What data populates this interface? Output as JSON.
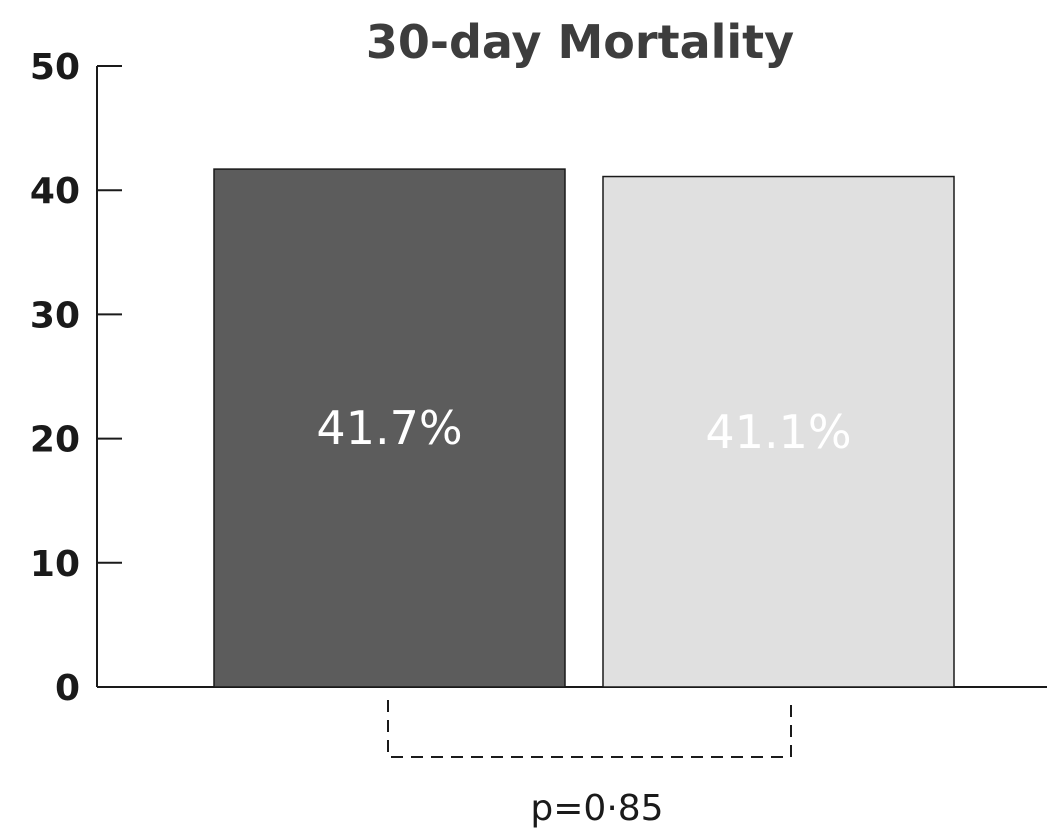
{
  "chart_data": {
    "type": "bar",
    "title": "30-day Mortality",
    "xlabel": "",
    "ylabel": "",
    "ylim": [
      0,
      50
    ],
    "yticks": [
      0,
      10,
      20,
      30,
      40,
      50
    ],
    "categories": [
      "",
      ""
    ],
    "values": [
      41.7,
      41.1
    ],
    "data_labels": [
      "41.7%",
      "41.1%"
    ],
    "bar_colors": [
      "#5c5c5c",
      "#e0e0e0"
    ],
    "grid": false,
    "annotation": {
      "text": "p=0·85",
      "style": "dashed bracket below bars"
    }
  }
}
